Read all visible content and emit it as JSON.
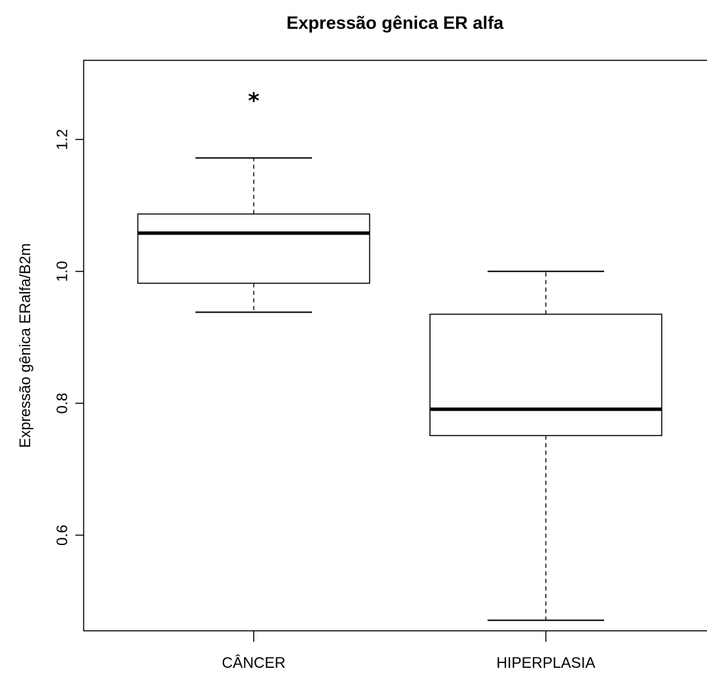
{
  "chart_data": {
    "type": "boxplot",
    "title": "Expressão gênica ER alfa",
    "ylabel": "Expressão gênica ERalfa/B2m",
    "xlabel": "",
    "ylim": [
      0.455,
      1.32
    ],
    "yticks": [
      0.6,
      0.8,
      1.0,
      1.2
    ],
    "ytick_labels": [
      "0.6",
      "0.8",
      "1.0",
      "1.2"
    ],
    "grid": false,
    "legend": "none",
    "outlier_symbol": "*",
    "categories": [
      "CÂNCER",
      "HIPERPLASIA"
    ],
    "boxes": [
      {
        "label": "CÂNCER",
        "whisker_low": 0.938,
        "q1": 0.982,
        "median": 1.058,
        "q3": 1.087,
        "whisker_high": 1.172,
        "outliers": [
          1.262
        ]
      },
      {
        "label": "HIPERPLASIA",
        "whisker_low": 0.471,
        "q1": 0.751,
        "median": 0.791,
        "q3": 0.935,
        "whisker_high": 1.0,
        "outliers": []
      }
    ]
  }
}
